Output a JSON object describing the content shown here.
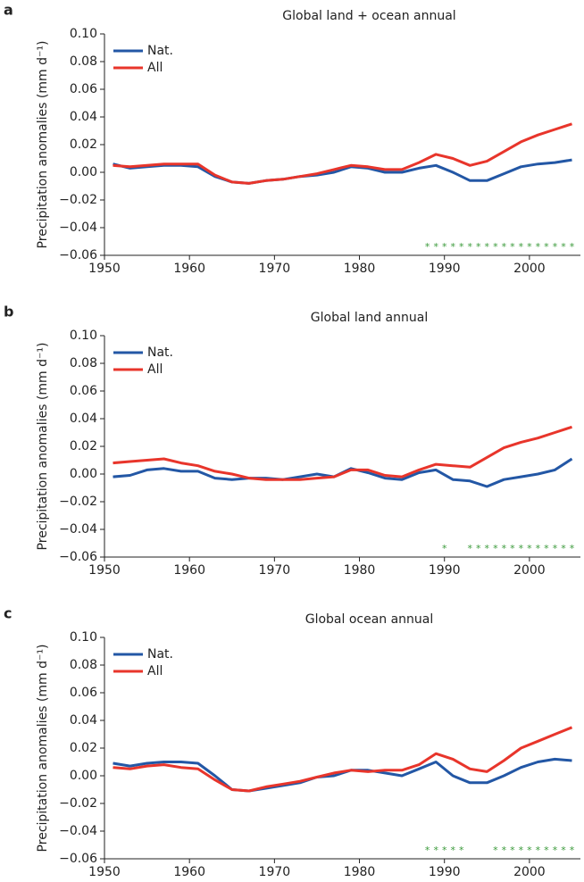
{
  "chart_data": [
    {
      "type": "line",
      "label": "a",
      "title": "Global land + ocean annual",
      "ylabel": "Precipitation anomalies (mm d⁻¹)",
      "x": [
        1951,
        1953,
        1955,
        1957,
        1959,
        1961,
        1963,
        1965,
        1967,
        1969,
        1971,
        1973,
        1975,
        1977,
        1979,
        1981,
        1983,
        1985,
        1987,
        1989,
        1991,
        1993,
        1995,
        1997,
        1999,
        2001,
        2003,
        2005
      ],
      "series": [
        {
          "name": "Nat.",
          "color": "#2357a5",
          "values": [
            0.006,
            0.003,
            0.004,
            0.005,
            0.005,
            0.004,
            -0.003,
            -0.007,
            -0.008,
            -0.006,
            -0.005,
            -0.003,
            -0.002,
            0.0,
            0.004,
            0.003,
            0.0,
            0.0,
            0.003,
            0.005,
            0.0,
            -0.006,
            -0.006,
            -0.001,
            0.004,
            0.006,
            0.007,
            0.009
          ]
        },
        {
          "name": "All",
          "color": "#e8352b",
          "values": [
            0.005,
            0.004,
            0.005,
            0.006,
            0.006,
            0.006,
            -0.002,
            -0.007,
            -0.008,
            -0.006,
            -0.005,
            -0.003,
            -0.001,
            0.002,
            0.005,
            0.004,
            0.002,
            0.002,
            0.007,
            0.013,
            0.01,
            0.005,
            0.008,
            0.015,
            0.022,
            0.027,
            0.031,
            0.035
          ]
        }
      ],
      "markers": {
        "color": "#3a9a3a",
        "x": [
          1988,
          1989,
          1990,
          1991,
          1992,
          1993,
          1994,
          1995,
          1996,
          1997,
          1998,
          1999,
          2000,
          2001,
          2002,
          2003,
          2004,
          2005
        ]
      },
      "xlim": [
        1950,
        2006
      ],
      "xticks": [
        1950,
        1960,
        1970,
        1980,
        1990,
        2000
      ],
      "ylim": [
        -0.06,
        0.1
      ],
      "yticks": [
        {
          "value": -0.06,
          "label": "−0.06"
        },
        {
          "value": -0.04,
          "label": "−0.04"
        },
        {
          "value": -0.02,
          "label": "−0.02"
        },
        {
          "value": 0,
          "label": "0.00"
        },
        {
          "value": 0.02,
          "label": "0.02"
        },
        {
          "value": 0.04,
          "label": "0.04"
        },
        {
          "value": 0.06,
          "label": "0.06"
        },
        {
          "value": 0.08,
          "label": "0.08"
        },
        {
          "value": 0.1,
          "label": "0.10"
        }
      ]
    },
    {
      "type": "line",
      "label": "b",
      "title": "Global land annual",
      "ylabel": "Precipitation anomalies (mm d⁻¹)",
      "x": [
        1951,
        1953,
        1955,
        1957,
        1959,
        1961,
        1963,
        1965,
        1967,
        1969,
        1971,
        1973,
        1975,
        1977,
        1979,
        1981,
        1983,
        1985,
        1987,
        1989,
        1991,
        1993,
        1995,
        1997,
        1999,
        2001,
        2003,
        2005
      ],
      "series": [
        {
          "name": "Nat.",
          "color": "#2357a5",
          "values": [
            -0.002,
            -0.001,
            0.003,
            0.004,
            0.002,
            0.002,
            -0.003,
            -0.004,
            -0.003,
            -0.003,
            -0.004,
            -0.002,
            0.0,
            -0.002,
            0.004,
            0.001,
            -0.003,
            -0.004,
            0.001,
            0.003,
            -0.004,
            -0.005,
            -0.009,
            -0.004,
            -0.002,
            0.0,
            0.003,
            0.011
          ]
        },
        {
          "name": "All",
          "color": "#e8352b",
          "values": [
            0.008,
            0.009,
            0.01,
            0.011,
            0.008,
            0.006,
            0.002,
            0.0,
            -0.003,
            -0.004,
            -0.004,
            -0.004,
            -0.003,
            -0.002,
            0.003,
            0.003,
            -0.001,
            -0.002,
            0.003,
            0.007,
            0.006,
            0.005,
            0.012,
            0.019,
            0.023,
            0.026,
            0.03,
            0.034
          ]
        }
      ],
      "markers": {
        "color": "#3a9a3a",
        "x": [
          1990,
          1993,
          1994,
          1995,
          1996,
          1997,
          1998,
          1999,
          2000,
          2001,
          2002,
          2003,
          2004,
          2005
        ]
      },
      "xlim": [
        1950,
        2006
      ],
      "xticks": [
        1950,
        1960,
        1970,
        1980,
        1990,
        2000
      ],
      "ylim": [
        -0.06,
        0.1
      ],
      "yticks": [
        {
          "value": -0.06,
          "label": "−0.06"
        },
        {
          "value": -0.04,
          "label": "−0.04"
        },
        {
          "value": -0.02,
          "label": "−0.02"
        },
        {
          "value": 0,
          "label": "0.00"
        },
        {
          "value": 0.02,
          "label": "0.02"
        },
        {
          "value": 0.04,
          "label": "0.04"
        },
        {
          "value": 0.06,
          "label": "0.06"
        },
        {
          "value": 0.08,
          "label": "0.08"
        },
        {
          "value": 0.1,
          "label": "0.10"
        }
      ]
    },
    {
      "type": "line",
      "label": "c",
      "title": "Global ocean annual",
      "ylabel": "Precipitation anomalies (mm d⁻¹)",
      "x": [
        1951,
        1953,
        1955,
        1957,
        1959,
        1961,
        1963,
        1965,
        1967,
        1969,
        1971,
        1973,
        1975,
        1977,
        1979,
        1981,
        1983,
        1985,
        1987,
        1989,
        1991,
        1993,
        1995,
        1997,
        1999,
        2001,
        2003,
        2005
      ],
      "series": [
        {
          "name": "Nat.",
          "color": "#2357a5",
          "values": [
            0.009,
            0.007,
            0.009,
            0.01,
            0.01,
            0.009,
            0.0,
            -0.01,
            -0.011,
            -0.009,
            -0.007,
            -0.005,
            -0.001,
            0.0,
            0.004,
            0.004,
            0.002,
            0.0,
            0.005,
            0.01,
            0.0,
            -0.005,
            -0.005,
            0.0,
            0.006,
            0.01,
            0.012,
            0.011
          ]
        },
        {
          "name": "All",
          "color": "#e8352b",
          "values": [
            0.006,
            0.005,
            0.007,
            0.008,
            0.006,
            0.005,
            -0.003,
            -0.01,
            -0.011,
            -0.008,
            -0.006,
            -0.004,
            -0.001,
            0.002,
            0.004,
            0.003,
            0.004,
            0.004,
            0.008,
            0.016,
            0.012,
            0.005,
            0.003,
            0.011,
            0.02,
            0.025,
            0.03,
            0.035
          ]
        }
      ],
      "markers": {
        "color": "#3a9a3a",
        "x": [
          1988,
          1989,
          1990,
          1991,
          1992,
          1996,
          1997,
          1998,
          1999,
          2000,
          2001,
          2002,
          2003,
          2004,
          2005
        ]
      },
      "xlim": [
        1950,
        2006
      ],
      "xticks": [
        1950,
        1960,
        1970,
        1980,
        1990,
        2000
      ],
      "ylim": [
        -0.06,
        0.1
      ],
      "yticks": [
        {
          "value": -0.06,
          "label": "−0.06"
        },
        {
          "value": -0.04,
          "label": "−0.04"
        },
        {
          "value": -0.02,
          "label": "−0.02"
        },
        {
          "value": 0,
          "label": "0.00"
        },
        {
          "value": 0.02,
          "label": "0.02"
        },
        {
          "value": 0.04,
          "label": "0.04"
        },
        {
          "value": 0.06,
          "label": "0.06"
        },
        {
          "value": 0.08,
          "label": "0.08"
        },
        {
          "value": 0.1,
          "label": "0.10"
        }
      ]
    }
  ]
}
